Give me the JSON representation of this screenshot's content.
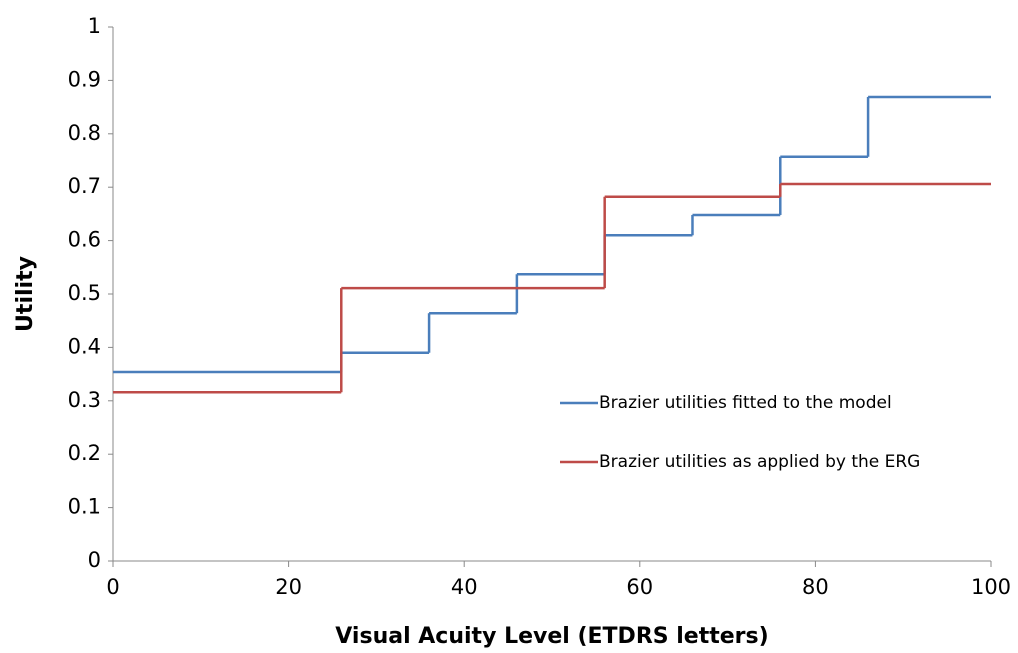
{
  "chart_data": {
    "type": "step",
    "x_label": "Visual Acuity Level (ETDRS letters)",
    "y_label": "Utility",
    "xlim": [
      0,
      100
    ],
    "ylim": [
      0,
      1
    ],
    "xticks": [
      0,
      20,
      40,
      60,
      80,
      100
    ],
    "yticks": [
      0,
      0.1,
      0.2,
      0.3,
      0.4,
      0.5,
      0.6,
      0.7,
      0.8,
      0.9,
      1
    ],
    "grid": false,
    "legend": "right",
    "series": [
      {
        "name": "Brazier utilities fitted to the model",
        "color": "#4a7ebb",
        "x": [
          0,
          26,
          36,
          46,
          56,
          66,
          76,
          86
        ],
        "values": [
          0.354,
          0.39,
          0.464,
          0.537,
          0.61,
          0.648,
          0.757,
          0.869
        ]
      },
      {
        "name": "Brazier utilities as applied by the ERG",
        "color": "#be4b48",
        "x": [
          0,
          26,
          56,
          76
        ],
        "values": [
          0.316,
          0.511,
          0.682,
          0.706
        ]
      }
    ]
  }
}
